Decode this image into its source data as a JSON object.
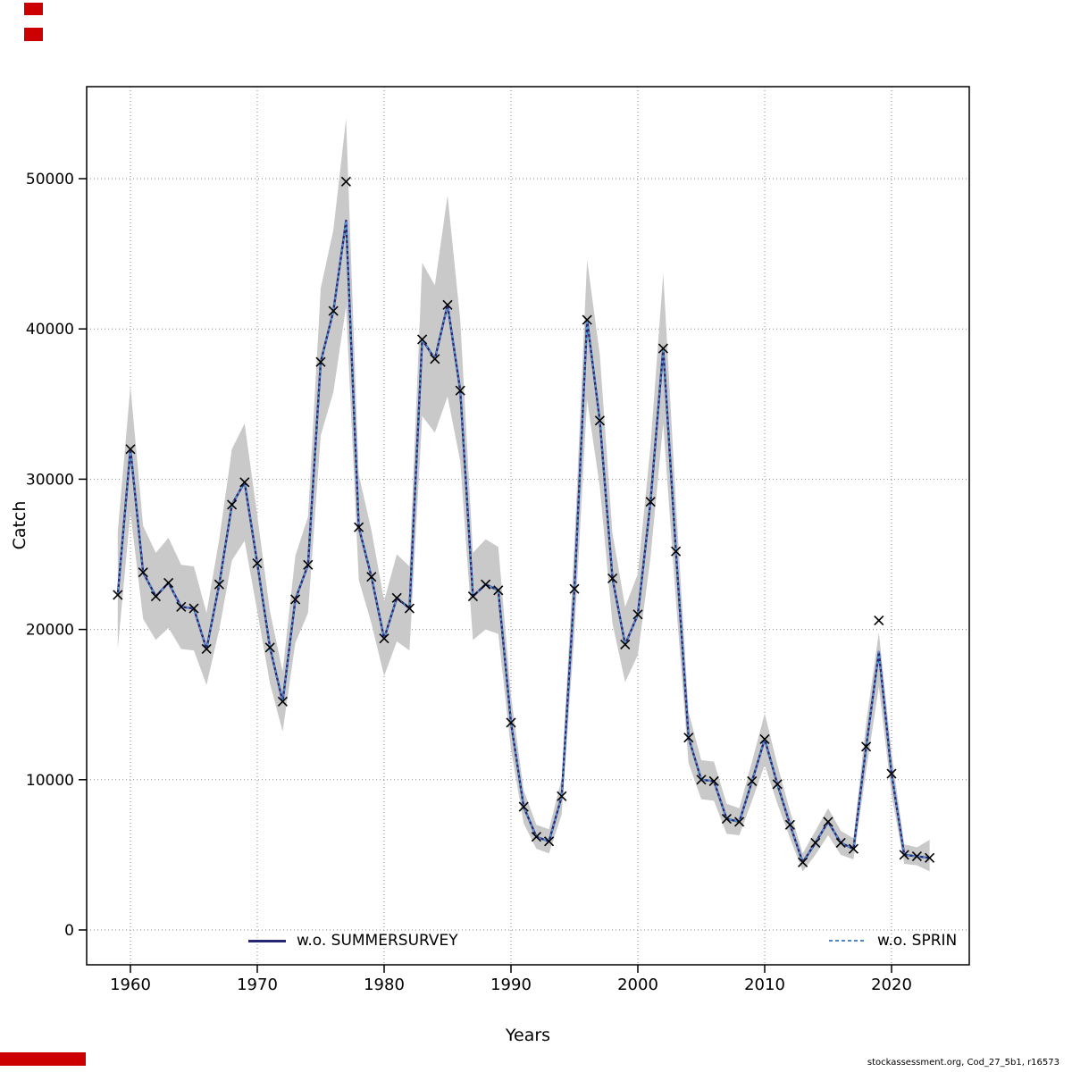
{
  "figure": {
    "xlabel": "Years",
    "ylabel": "Catch",
    "footer": "stockassessment.org, Cod_27_5b1, r16573",
    "legend": [
      {
        "label": "w.o. SUMMERSURVEY",
        "color": "#262673",
        "style": "solid"
      },
      {
        "label": "w.o. SPRIN",
        "color": "#4a86c8",
        "style": "dashed"
      }
    ]
  },
  "chart_data": {
    "type": "line",
    "title": "",
    "xlabel": "Years",
    "ylabel": "Catch",
    "legend_position": "bottom-inside",
    "grid": "dotted",
    "x_ticks": [
      1960,
      1970,
      1980,
      1990,
      2000,
      2010,
      2020
    ],
    "y_ticks": [
      0,
      10000,
      20000,
      30000,
      40000,
      50000
    ],
    "xlim": [
      1956.5,
      2026.1
    ],
    "ylim": [
      -2300,
      56100
    ],
    "years": [
      1959,
      1960,
      1961,
      1962,
      1963,
      1964,
      1965,
      1966,
      1967,
      1968,
      1969,
      1970,
      1971,
      1972,
      1973,
      1974,
      1975,
      1976,
      1977,
      1978,
      1979,
      1980,
      1981,
      1982,
      1983,
      1984,
      1985,
      1986,
      1987,
      1988,
      1989,
      1990,
      1991,
      1992,
      1993,
      1994,
      1995,
      1996,
      1997,
      1998,
      1999,
      2000,
      2001,
      2002,
      2003,
      2004,
      2005,
      2006,
      2007,
      2008,
      2009,
      2010,
      2011,
      2012,
      2013,
      2014,
      2015,
      2016,
      2017,
      2018,
      2019,
      2020,
      2021,
      2022,
      2023
    ],
    "series": [
      {
        "name": "w.o. SUMMERSURVEY",
        "color": "#262673",
        "style": "solid",
        "values": [
          22300,
          32000,
          23800,
          22200,
          23100,
          21500,
          21400,
          18700,
          23000,
          28300,
          29800,
          24400,
          18800,
          15200,
          22000,
          24300,
          37800,
          41200,
          47200,
          26800,
          23500,
          19400,
          22100,
          21400,
          39300,
          38000,
          41600,
          35900,
          22200,
          23000,
          22600,
          13800,
          8200,
          6200,
          5900,
          8900,
          22700,
          40600,
          33900,
          23400,
          19000,
          21000,
          28500,
          38700,
          25200,
          12800,
          10000,
          9900,
          7400,
          7200,
          9900,
          12700,
          9700,
          7000,
          4500,
          5800,
          7200,
          5800,
          5400,
          12200,
          18500,
          10400,
          5000,
          4900,
          4800
        ]
      },
      {
        "name": "w.o. SPRIN",
        "color": "#5599d8",
        "style": "dashed",
        "values": [
          22300,
          32000,
          23800,
          22200,
          23100,
          21500,
          21400,
          18700,
          23000,
          28300,
          29800,
          24400,
          18800,
          15200,
          22000,
          24300,
          37800,
          41200,
          47200,
          26800,
          23500,
          19400,
          22100,
          21400,
          39300,
          38000,
          41600,
          35900,
          22200,
          23000,
          22600,
          13800,
          8200,
          6200,
          5900,
          8900,
          22700,
          40600,
          33900,
          23400,
          19000,
          21000,
          28500,
          38700,
          25200,
          12800,
          10000,
          9900,
          7400,
          7200,
          9900,
          12700,
          9700,
          7000,
          4500,
          5800,
          7200,
          5800,
          5400,
          12200,
          18500,
          10400,
          5000,
          4900,
          4800
        ]
      }
    ],
    "band": {
      "color": "#c9c9c9",
      "lo": [
        18700,
        27800,
        20700,
        19300,
        20100,
        18700,
        18600,
        16300,
        20000,
        24600,
        25900,
        21200,
        16400,
        13200,
        19100,
        21100,
        32900,
        35800,
        41500,
        23300,
        20400,
        16900,
        19200,
        18600,
        34200,
        33100,
        35500,
        31200,
        19300,
        20000,
        19700,
        12000,
        7100,
        5400,
        5100,
        7700,
        19700,
        35300,
        29500,
        20400,
        16500,
        18300,
        24800,
        33700,
        21900,
        11100,
        8700,
        8600,
        6400,
        6300,
        8600,
        11000,
        8400,
        6100,
        3900,
        5000,
        6300,
        5000,
        4700,
        10600,
        16200,
        9000,
        4400,
        4300,
        3900
      ],
      "hi": [
        26500,
        36200,
        26900,
        25100,
        26100,
        24300,
        24200,
        21100,
        26000,
        32000,
        33700,
        27600,
        21200,
        17200,
        24900,
        27500,
        42700,
        46600,
        54000,
        30300,
        26600,
        21900,
        25000,
        24200,
        44400,
        42900,
        48900,
        40600,
        25100,
        26000,
        25500,
        15600,
        9300,
        7000,
        6700,
        10100,
        25700,
        44600,
        38300,
        26400,
        21500,
        23700,
        32200,
        43700,
        28500,
        14500,
        11300,
        11200,
        8400,
        8100,
        11200,
        14400,
        11000,
        7900,
        5100,
        6600,
        8100,
        6600,
        6100,
        13800,
        19800,
        11800,
        5700,
        5500,
        6000
      ]
    },
    "markers": {
      "symbol": "x",
      "color": "#000000",
      "values": [
        22300,
        32000,
        23800,
        22200,
        23100,
        21500,
        21400,
        18700,
        23000,
        28300,
        29800,
        24400,
        18800,
        15200,
        22000,
        24300,
        37800,
        41200,
        49800,
        26800,
        23500,
        19400,
        22100,
        21400,
        39300,
        38000,
        41600,
        35900,
        22200,
        23000,
        22600,
        13800,
        8200,
        6200,
        5900,
        8900,
        22700,
        40600,
        33900,
        23400,
        19000,
        21000,
        28500,
        38700,
        25200,
        12800,
        10000,
        9900,
        7400,
        7200,
        9900,
        12700,
        9700,
        7000,
        4500,
        5800,
        7200,
        5800,
        5400,
        12200,
        20600,
        10400,
        5000,
        4900,
        4800
      ]
    }
  }
}
